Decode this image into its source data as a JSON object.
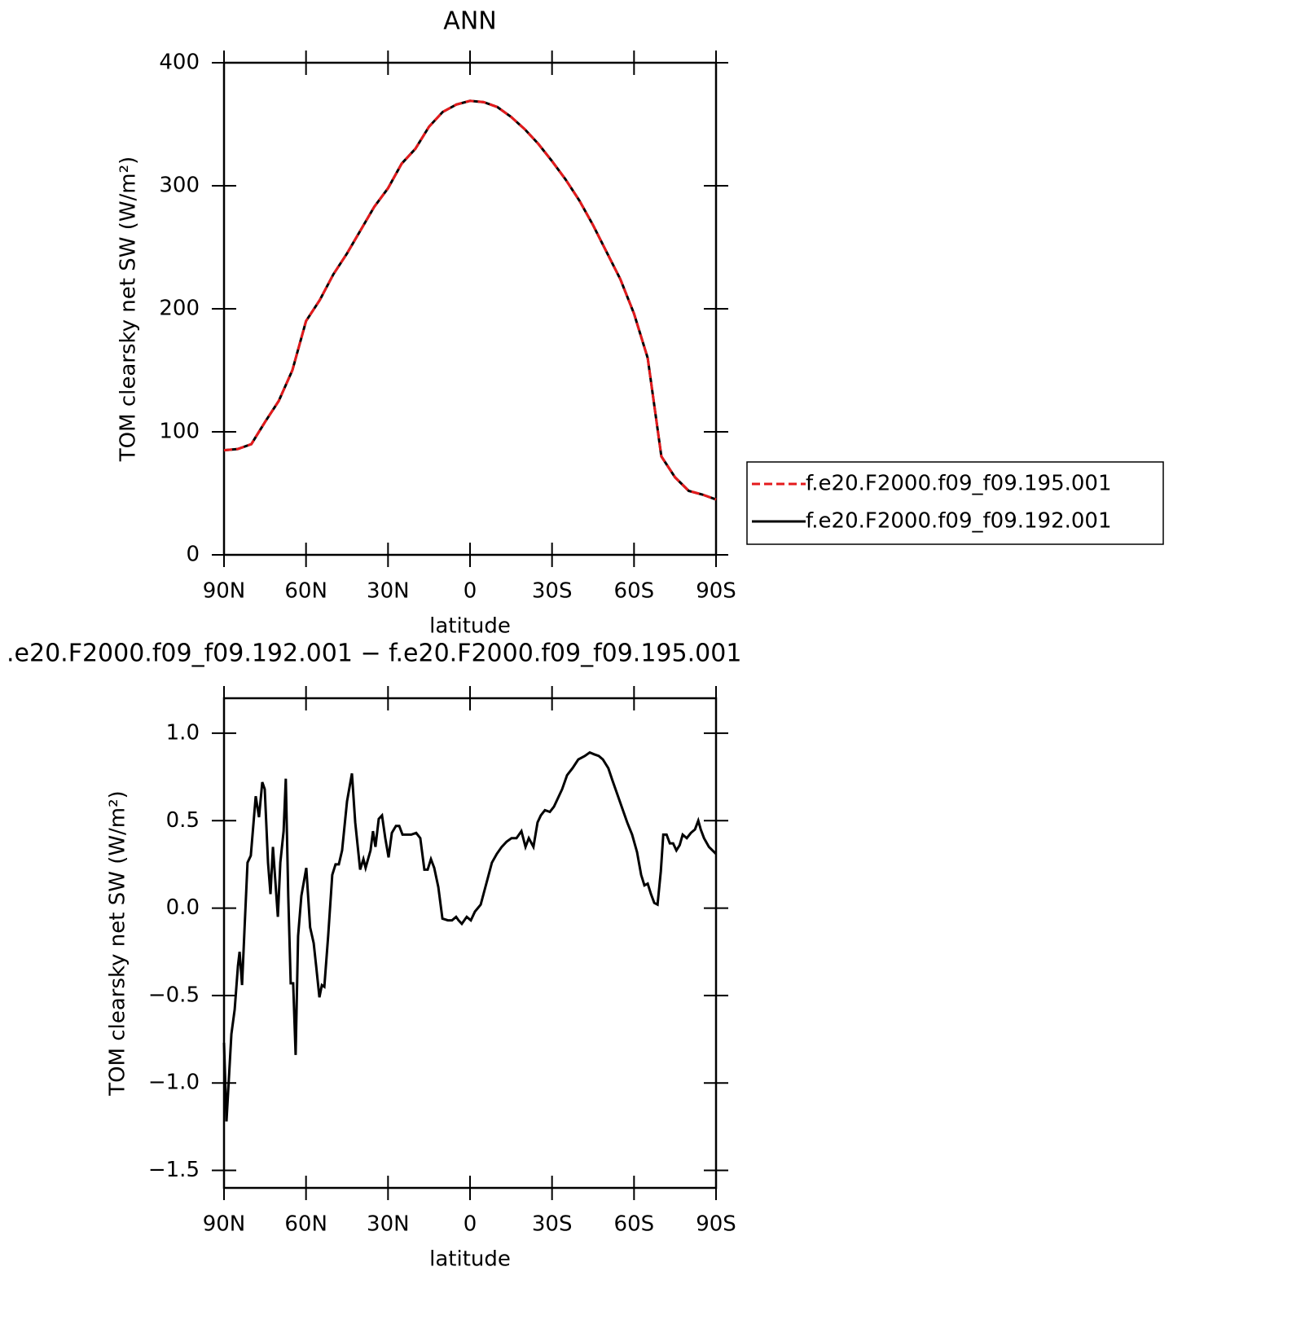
{
  "chart_data": [
    {
      "type": "line",
      "title": "ANN",
      "xlabel": "latitude",
      "ylabel": "TOM clearsky net SW (W/m²)",
      "x": [
        90,
        85,
        80,
        75,
        70,
        65,
        60,
        55,
        50,
        45,
        40,
        35,
        30,
        25,
        20,
        15,
        10,
        5,
        0,
        -5,
        -10,
        -15,
        -20,
        -25,
        -30,
        -35,
        -40,
        -45,
        -50,
        -55,
        -60,
        -65,
        -70,
        -75,
        -80,
        -85,
        -90
      ],
      "series": [
        {
          "name": "f.e20.F2000.f09_f09.195.001",
          "color": "#e41a1c",
          "linestyle": "dashed",
          "values": [
            85,
            86,
            90,
            108,
            125,
            150,
            190,
            207,
            228,
            245,
            264,
            283,
            298,
            318,
            330,
            348,
            360,
            366,
            369,
            368,
            364,
            356,
            346,
            334,
            320,
            305,
            288,
            268,
            246,
            224,
            196,
            160,
            80,
            63,
            52,
            49,
            45
          ]
        },
        {
          "name": "f.e20.F2000.f09_f09.192.001",
          "color": "#000000",
          "linestyle": "solid",
          "values": [
            85,
            86,
            90,
            108,
            125,
            150,
            190,
            207,
            228,
            245,
            264,
            283,
            298,
            318,
            330,
            348,
            360,
            366,
            369,
            368,
            364,
            356,
            346,
            334,
            320,
            305,
            288,
            268,
            246,
            224,
            196,
            160,
            80,
            63,
            52,
            49,
            45
          ]
        }
      ],
      "xlim": [
        90,
        -90
      ],
      "xticks": [
        {
          "value": 90,
          "label": "90N"
        },
        {
          "value": 60,
          "label": "60N"
        },
        {
          "value": 30,
          "label": "30N"
        },
        0,
        {
          "value": -30,
          "label": "30S"
        },
        {
          "value": -60,
          "label": "60S"
        },
        {
          "value": -90,
          "label": "90S"
        }
      ],
      "ylim": [
        0,
        400
      ],
      "yticks": [
        0,
        100,
        200,
        300,
        400
      ],
      "legend": "right"
    },
    {
      "type": "line",
      "title": ".e20.F2000.f09_f09.192.001 − f.e20.F2000.f09_f09.195.001",
      "xlabel": "latitude",
      "ylabel": "TOM clearsky net SW (W/m²)",
      "x": [
        90,
        89.1,
        87.3,
        86.1,
        84.9,
        84.3,
        83.4,
        82.5,
        81.4,
        80.2,
        78.4,
        77.2,
        76.0,
        75.1,
        73.9,
        73.0,
        72.1,
        70.3,
        69.4,
        68.2,
        67.4,
        66.5,
        65.6,
        64.7,
        63.8,
        62.9,
        61.7,
        59.9,
        58.5,
        57.2,
        56.3,
        55.1,
        54.2,
        53.3,
        51.9,
        50.4,
        49.2,
        48.0,
        46.8,
        45.0,
        43.2,
        42.0,
        40.2,
        39.0,
        38.2,
        36.4,
        35.5,
        34.6,
        33.4,
        32.2,
        31.0,
        29.8,
        28.6,
        27.1,
        25.9,
        24.7,
        23.3,
        21.5,
        19.7,
        18.2,
        16.7,
        15.5,
        14.3,
        13.1,
        11.6,
        10.1,
        8.1,
        6.6,
        5.1,
        4.2,
        3.0,
        1.2,
        -0.3,
        -1.8,
        -3.9,
        -5.1,
        -6.3,
        -8.0,
        -9.8,
        -11.6,
        -13.4,
        -15.2,
        -17.0,
        -18.8,
        -20.3,
        -21.5,
        -23.2,
        -24.7,
        -25.9,
        -27.4,
        -29.2,
        -30.7,
        -32.2,
        -33.7,
        -35.5,
        -37.5,
        -39.6,
        -42.0,
        -43.8,
        -45.3,
        -47.1,
        -48.6,
        -50.6,
        -52.1,
        -53.9,
        -55.7,
        -57.5,
        -59.3,
        -61.1,
        -62.6,
        -63.8,
        -65.0,
        -66.2,
        -67.4,
        -68.6,
        -69.8,
        -70.7,
        -71.9,
        -73.1,
        -74.3,
        -75.5,
        -76.7,
        -77.8,
        -79.3,
        -80.8,
        -82.3,
        -83.5,
        -84.4,
        -85.6,
        -87.4,
        -90.0
      ],
      "series": [
        {
          "color": "#000000",
          "linestyle": "solid",
          "values": [
            -0.77,
            -1.22,
            -0.72,
            -0.58,
            -0.33,
            -0.25,
            -0.44,
            -0.12,
            0.26,
            0.3,
            0.64,
            0.52,
            0.72,
            0.68,
            0.26,
            0.08,
            0.35,
            -0.05,
            0.26,
            0.44,
            0.74,
            0.07,
            -0.43,
            -0.43,
            -0.84,
            -0.16,
            0.07,
            0.23,
            -0.11,
            -0.2,
            -0.33,
            -0.51,
            -0.44,
            -0.45,
            -0.16,
            0.19,
            0.25,
            0.25,
            0.33,
            0.61,
            0.77,
            0.49,
            0.22,
            0.28,
            0.23,
            0.33,
            0.44,
            0.35,
            0.51,
            0.53,
            0.4,
            0.29,
            0.43,
            0.47,
            0.47,
            0.42,
            0.42,
            0.42,
            0.43,
            0.4,
            0.22,
            0.22,
            0.28,
            0.23,
            0.12,
            -0.06,
            -0.07,
            -0.07,
            -0.05,
            -0.07,
            -0.09,
            -0.05,
            -0.07,
            -0.02,
            0.02,
            0.09,
            0.16,
            0.26,
            0.31,
            0.35,
            0.38,
            0.4,
            0.4,
            0.44,
            0.35,
            0.4,
            0.35,
            0.49,
            0.53,
            0.56,
            0.55,
            0.58,
            0.63,
            0.68,
            0.76,
            0.8,
            0.85,
            0.87,
            0.89,
            0.88,
            0.87,
            0.85,
            0.8,
            0.73,
            0.65,
            0.57,
            0.49,
            0.42,
            0.32,
            0.19,
            0.13,
            0.14,
            0.08,
            0.03,
            0.02,
            0.21,
            0.42,
            0.42,
            0.37,
            0.37,
            0.33,
            0.36,
            0.42,
            0.4,
            0.43,
            0.45,
            0.5,
            0.45,
            0.4,
            0.35,
            0.31
          ]
        }
      ],
      "xlim": [
        90,
        -90
      ],
      "xticks": [
        {
          "value": 90,
          "label": "90N"
        },
        {
          "value": 60,
          "label": "60N"
        },
        {
          "value": 30,
          "label": "30N"
        },
        0,
        {
          "value": -30,
          "label": "30S"
        },
        {
          "value": -60,
          "label": "60S"
        },
        {
          "value": -90,
          "label": "90S"
        }
      ],
      "ylim": [
        -1.6,
        1.2
      ],
      "yticks": [
        {
          "value": -1.5,
          "label": "−1.5"
        },
        {
          "value": -1,
          "label": "−1.0"
        },
        {
          "value": -0.5,
          "label": "−0.5"
        },
        {
          "value": 0,
          "label": "0.0"
        },
        0.5,
        {
          "value": 1,
          "label": "1.0"
        }
      ]
    }
  ]
}
